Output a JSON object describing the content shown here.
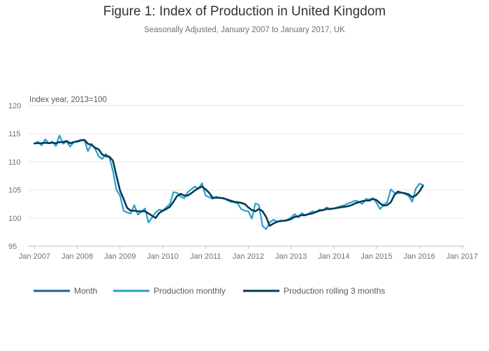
{
  "header": {
    "title": "Figure 1: Index of Production in United Kingdom",
    "subtitle": "Seasonally Adjusted, January 2007 to January 2017, UK"
  },
  "chart_data": {
    "type": "line",
    "title": "Figure 1: Index of Production in United Kingdom",
    "subtitle": "Seasonally Adjusted, January 2007 to January 2017, UK",
    "ylabel": "Index year, 2013=100",
    "xlabel": "",
    "ylim": [
      95,
      120
    ],
    "yticks": [
      95,
      100,
      105,
      110,
      115,
      120
    ],
    "xlim": [
      "2006-11",
      "2017-02"
    ],
    "xtick_labels": [
      "Jan 2007",
      "Jan 2008",
      "Jan 2009",
      "Jan 2010",
      "Jan 2011",
      "Jan 2012",
      "Jan 2013",
      "Jan 2014",
      "Jan 2015",
      "Jan 2016",
      "Jan 2017"
    ],
    "grid": "horizontal",
    "legend_position": "bottom",
    "colors": {
      "month": "#206095",
      "monthly": "#27a0cc",
      "rolling": "#003c57"
    },
    "legend": [
      "Month",
      "Production monthly",
      "Production rolling 3 months"
    ],
    "start": "2007-01",
    "series": [
      {
        "name": "Production monthly",
        "values": [
          113.2,
          113.6,
          112.9,
          114.0,
          113.3,
          113.6,
          112.8,
          114.7,
          113.2,
          113.6,
          112.7,
          113.5,
          113.7,
          113.9,
          113.9,
          111.9,
          113.2,
          112.3,
          111.0,
          110.5,
          111.4,
          110.8,
          108.4,
          105.0,
          104.0,
          101.3,
          101.0,
          100.8,
          102.3,
          100.6,
          101.1,
          101.7,
          99.2,
          100.1,
          101.0,
          101.5,
          101.3,
          101.9,
          102.5,
          104.6,
          104.5,
          103.8,
          103.5,
          104.6,
          105.1,
          105.6,
          105.2,
          106.2,
          104.0,
          103.7,
          103.4,
          103.8,
          103.5,
          103.6,
          103.2,
          102.9,
          102.8,
          102.6,
          101.6,
          101.3,
          101.2,
          99.9,
          102.6,
          102.3,
          98.6,
          98.0,
          99.2,
          99.7,
          99.4,
          99.4,
          99.5,
          99.7,
          100.1,
          100.7,
          100.1,
          100.9,
          100.5,
          100.8,
          101.2,
          101.0,
          101.5,
          101.4,
          101.9,
          101.6,
          101.7,
          101.9,
          102.1,
          102.3,
          102.6,
          102.8,
          103.1,
          102.9,
          102.5,
          103.4,
          103.3,
          103.5,
          102.7,
          101.6,
          102.4,
          102.8,
          105.1,
          104.5,
          104.4,
          104.5,
          104.3,
          103.9,
          102.9,
          105.2,
          106.1,
          105.9
        ]
      },
      {
        "name": "Production rolling 3 months",
        "values": [
          113.3,
          113.3,
          113.3,
          113.4,
          113.3,
          113.4,
          113.3,
          113.5,
          113.5,
          113.7,
          113.3,
          113.5,
          113.6,
          113.8,
          113.9,
          113.2,
          113.0,
          112.5,
          112.2,
          111.3,
          111.0,
          110.9,
          110.2,
          107.5,
          104.9,
          103.4,
          101.8,
          101.3,
          101.3,
          101.2,
          101.2,
          101.2,
          100.8,
          100.4,
          100.0,
          100.9,
          101.3,
          101.6,
          102.0,
          102.9,
          103.9,
          104.3,
          104.0,
          104.0,
          104.4,
          104.9,
          105.3,
          105.6,
          105.1,
          104.5,
          103.6,
          103.6,
          103.6,
          103.5,
          103.3,
          103.1,
          102.9,
          102.8,
          102.7,
          102.5,
          101.9,
          101.4,
          101.2,
          101.6,
          101.2,
          100.2,
          98.6,
          99.0,
          99.3,
          99.5,
          99.5,
          99.6,
          99.8,
          100.2,
          100.3,
          100.5,
          100.5,
          100.7,
          100.8,
          101.1,
          101.3,
          101.4,
          101.6,
          101.6,
          101.7,
          101.8,
          101.9,
          102.0,
          102.1,
          102.3,
          102.6,
          102.8,
          103.0,
          103.1,
          103.1,
          103.4,
          103.2,
          102.6,
          102.2,
          102.3,
          102.8,
          104.1,
          104.7,
          104.5,
          104.4,
          104.2,
          103.7,
          104.0,
          104.7,
          105.7
        ]
      }
    ]
  }
}
